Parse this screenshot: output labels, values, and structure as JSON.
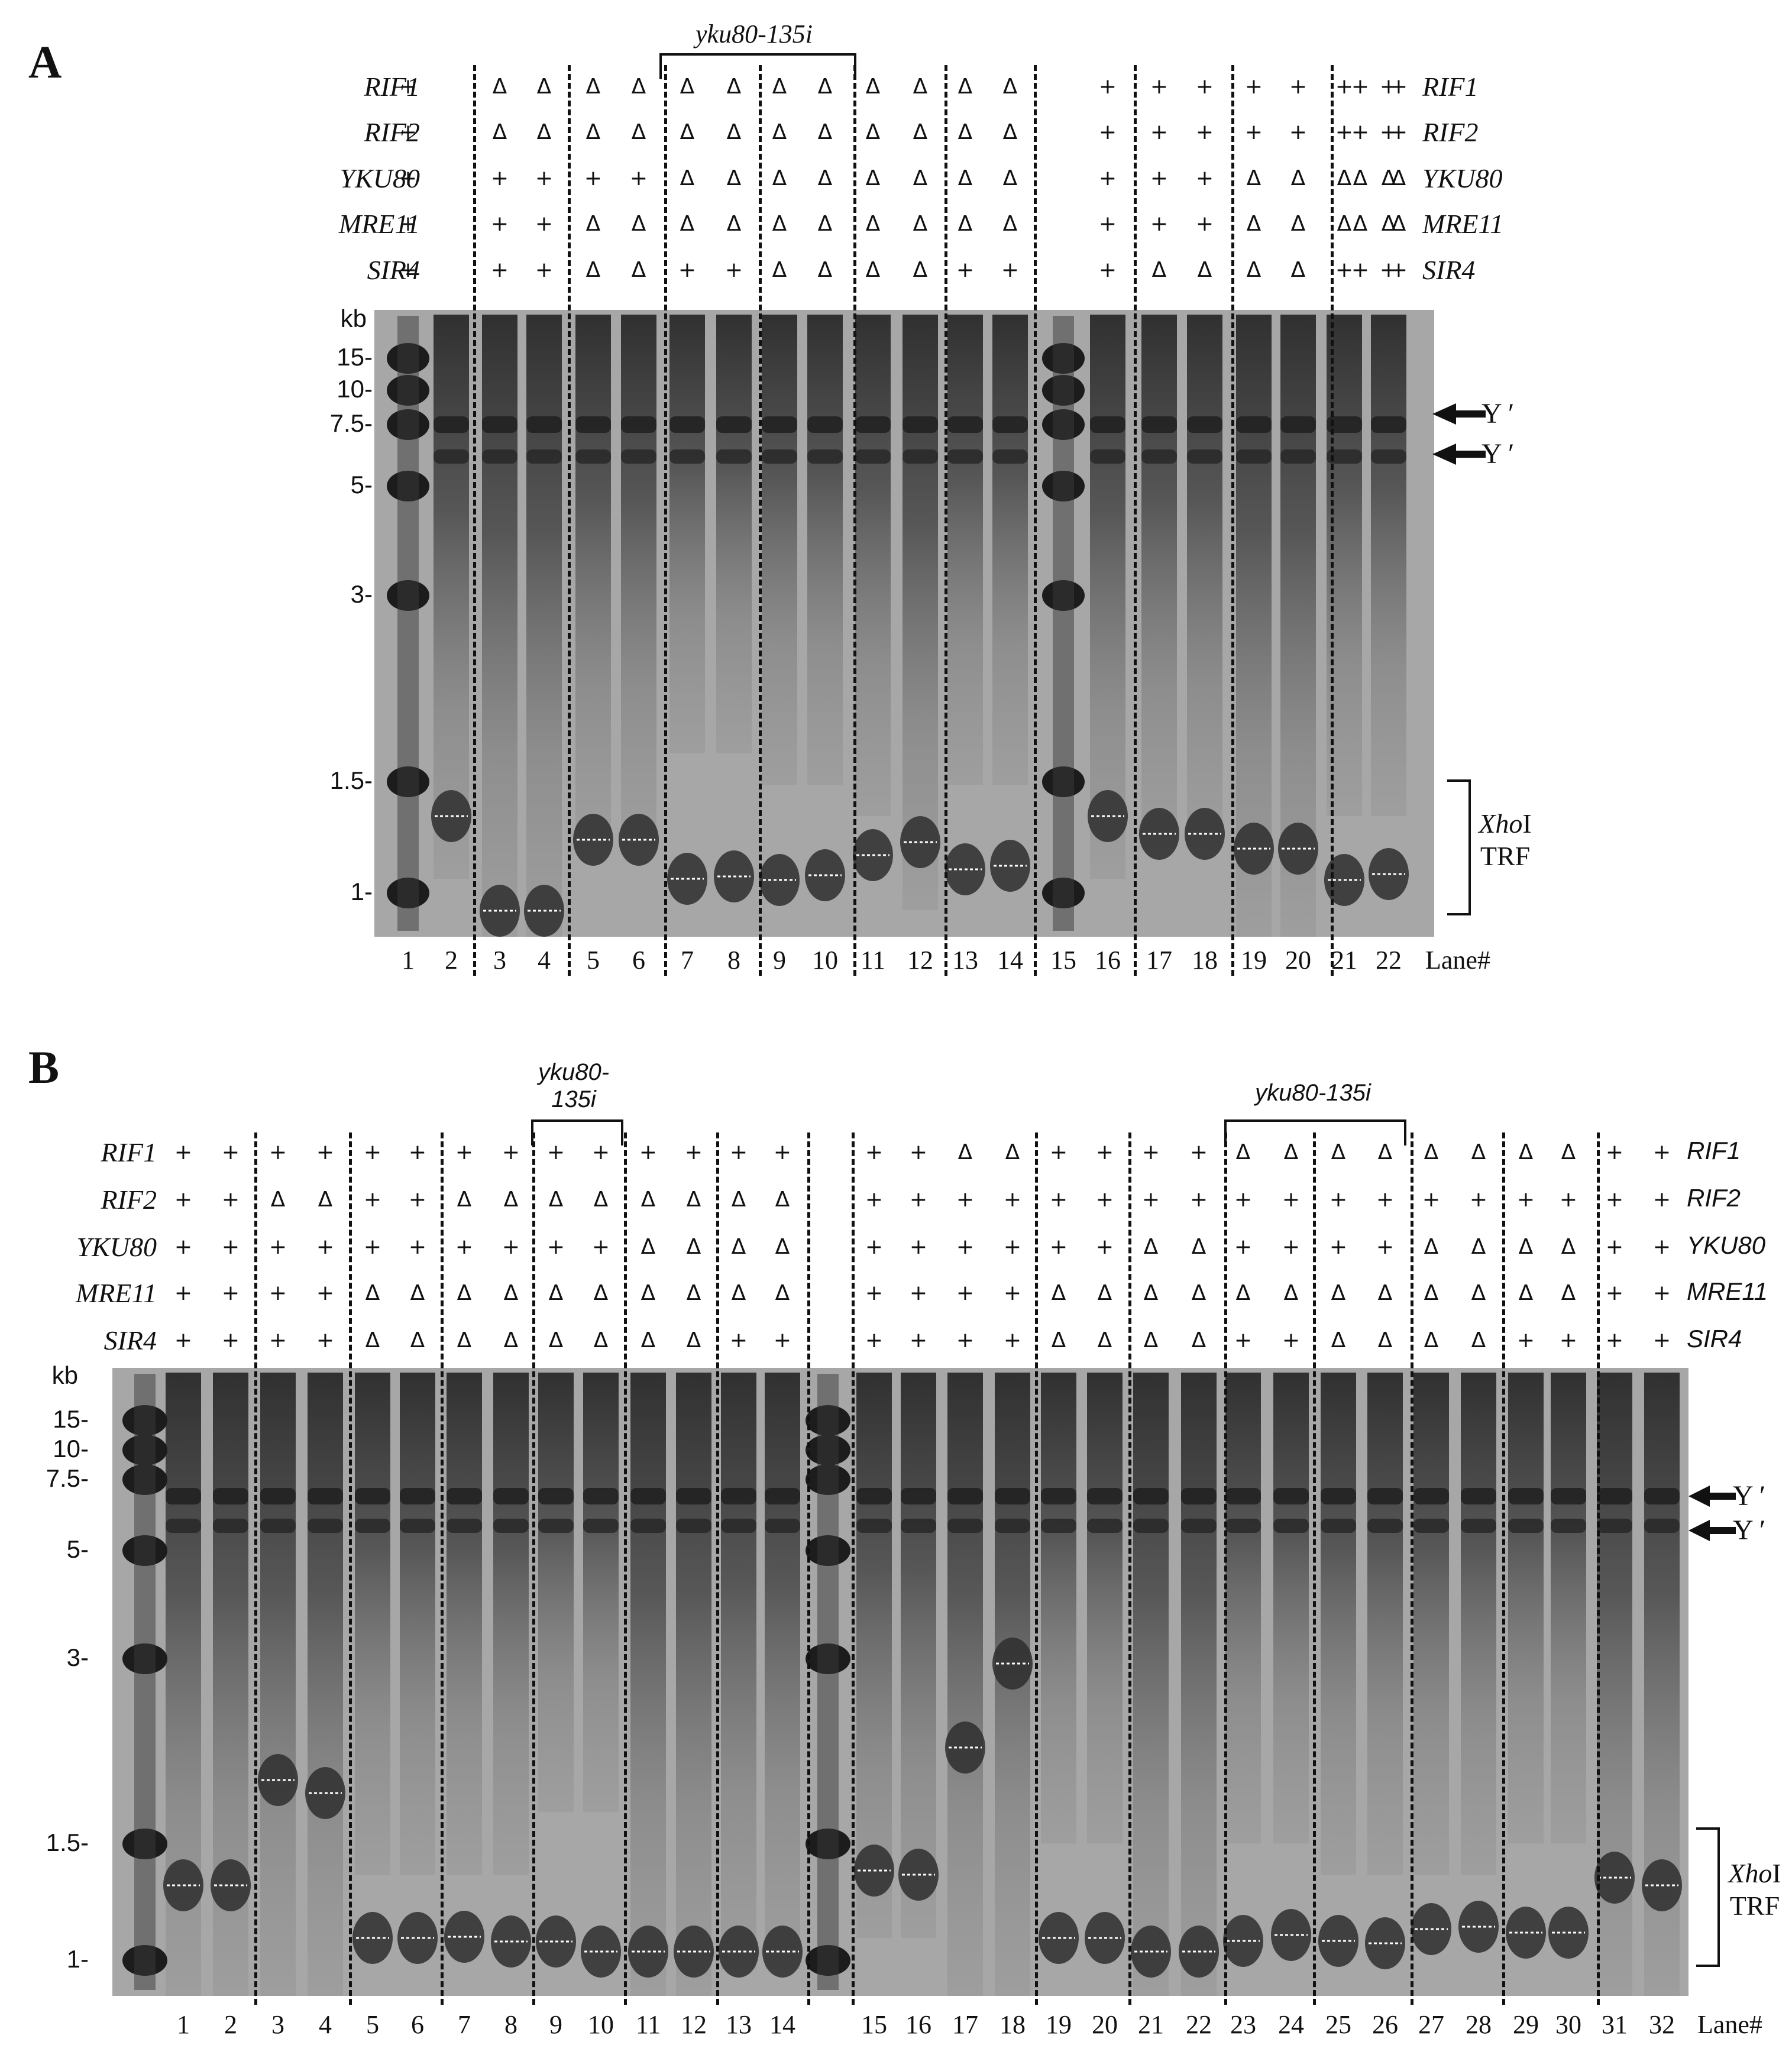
{
  "panelA": {
    "letter": "A",
    "bracket_label": "yku80-135i",
    "genes_left": [
      "RIF1",
      "RIF2",
      "YKU80",
      "MRE11",
      "SIR4"
    ],
    "genes_right": [
      "RIF1",
      "RIF2",
      "YKU80",
      "MRE11",
      "SIR4"
    ],
    "genotypes": [
      {
        "lane": "1",
        "RIF1": "+",
        "RIF2": "+",
        "YKU80": "+",
        "MRE11": "+",
        "SIR4": "+"
      },
      {
        "lane": "3",
        "RIF1": "Δ",
        "RIF2": "Δ",
        "YKU80": "+",
        "MRE11": "+",
        "SIR4": "+"
      },
      {
        "lane": "4",
        "RIF1": "Δ",
        "RIF2": "Δ",
        "YKU80": "+",
        "MRE11": "+",
        "SIR4": "+"
      },
      {
        "lane": "5",
        "RIF1": "Δ",
        "RIF2": "Δ",
        "YKU80": "+",
        "MRE11": "Δ",
        "SIR4": "Δ"
      },
      {
        "lane": "6",
        "RIF1": "Δ",
        "RIF2": "Δ",
        "YKU80": "+",
        "MRE11": "Δ",
        "SIR4": "Δ"
      },
      {
        "lane": "7",
        "RIF1": "Δ",
        "RIF2": "Δ",
        "YKU80": "Δ",
        "MRE11": "Δ",
        "SIR4": "+"
      },
      {
        "lane": "8",
        "RIF1": "Δ",
        "RIF2": "Δ",
        "YKU80": "Δ",
        "MRE11": "Δ",
        "SIR4": "+"
      },
      {
        "lane": "9",
        "RIF1": "Δ",
        "RIF2": "Δ",
        "YKU80": "Δ",
        "MRE11": "Δ",
        "SIR4": "Δ"
      },
      {
        "lane": "10",
        "RIF1": "Δ",
        "RIF2": "Δ",
        "YKU80": "Δ",
        "MRE11": "Δ",
        "SIR4": "Δ"
      },
      {
        "lane": "11",
        "RIF1": "Δ",
        "RIF2": "Δ",
        "YKU80": "Δ",
        "MRE11": "Δ",
        "SIR4": "Δ"
      },
      {
        "lane": "12",
        "RIF1": "Δ",
        "RIF2": "Δ",
        "YKU80": "Δ",
        "MRE11": "Δ",
        "SIR4": "Δ"
      },
      {
        "lane": "13",
        "RIF1": "Δ",
        "RIF2": "Δ",
        "YKU80": "Δ",
        "MRE11": "Δ",
        "SIR4": "+"
      },
      {
        "lane": "14",
        "RIF1": "Δ",
        "RIF2": "Δ",
        "YKU80": "Δ",
        "MRE11": "Δ",
        "SIR4": "+"
      },
      {
        "lane": "16",
        "RIF1": "+",
        "RIF2": "+",
        "YKU80": "+",
        "MRE11": "+",
        "SIR4": "+"
      },
      {
        "lane": "17",
        "RIF1": "+",
        "RIF2": "+",
        "YKU80": "+",
        "MRE11": "+",
        "SIR4": "Δ"
      },
      {
        "lane": "18",
        "RIF1": "+",
        "RIF2": "+",
        "YKU80": "+",
        "MRE11": "+",
        "SIR4": "Δ"
      },
      {
        "lane": "19",
        "RIF1": "+",
        "RIF2": "+",
        "YKU80": "Δ",
        "MRE11": "Δ",
        "SIR4": "Δ"
      },
      {
        "lane": "20",
        "RIF1": "+",
        "RIF2": "+",
        "YKU80": "Δ",
        "MRE11": "Δ",
        "SIR4": "Δ"
      },
      {
        "lane": "21",
        "RIF1": "+",
        "RIF2": "+",
        "YKU80": "Δ",
        "MRE11": "Δ",
        "SIR4": "+"
      },
      {
        "lane": "22",
        "RIF1": "+",
        "RIF2": "+",
        "YKU80": "Δ",
        "MRE11": "Δ",
        "SIR4": "+"
      }
    ],
    "kb_label": "kb",
    "markers": [
      "15-",
      "10-",
      "7.5-",
      "5-",
      "3-",
      "1.5-",
      "1-"
    ],
    "lanes": [
      "1",
      "2",
      "3",
      "4",
      "5",
      "6",
      "7",
      "8",
      "9",
      "10",
      "11",
      "12",
      "13",
      "14",
      "15",
      "16",
      "17",
      "18",
      "19",
      "20",
      "21",
      "22"
    ],
    "lane_tag": "Lane#",
    "y_prime": "Y ′",
    "xhoi": "Xho",
    "xhoi_suffix": "I",
    "trf": "TRF"
  },
  "panelB": {
    "letter": "B",
    "bracket_label_1": "yku80-",
    "bracket_label_1b": "135i",
    "bracket_label_2": "yku80-135i",
    "genes_left": [
      "RIF1",
      "RIF2",
      "YKU80",
      "MRE11",
      "SIR4"
    ],
    "genes_right": [
      "RIF1",
      "RIF2",
      "YKU80",
      "MRE11",
      "SIR4"
    ],
    "genotypes": [
      {
        "lane": "1",
        "RIF1": "+",
        "RIF2": "+",
        "YKU80": "+",
        "MRE11": "+",
        "SIR4": "+"
      },
      {
        "lane": "2",
        "RIF1": "+",
        "RIF2": "+",
        "YKU80": "+",
        "MRE11": "+",
        "SIR4": "+"
      },
      {
        "lane": "3",
        "RIF1": "+",
        "RIF2": "Δ",
        "YKU80": "+",
        "MRE11": "+",
        "SIR4": "+"
      },
      {
        "lane": "4",
        "RIF1": "+",
        "RIF2": "Δ",
        "YKU80": "+",
        "MRE11": "+",
        "SIR4": "+"
      },
      {
        "lane": "5",
        "RIF1": "+",
        "RIF2": "+",
        "YKU80": "+",
        "MRE11": "Δ",
        "SIR4": "Δ"
      },
      {
        "lane": "6",
        "RIF1": "+",
        "RIF2": "+",
        "YKU80": "+",
        "MRE11": "Δ",
        "SIR4": "Δ"
      },
      {
        "lane": "7",
        "RIF1": "+",
        "RIF2": "Δ",
        "YKU80": "+",
        "MRE11": "Δ",
        "SIR4": "Δ"
      },
      {
        "lane": "8",
        "RIF1": "+",
        "RIF2": "Δ",
        "YKU80": "+",
        "MRE11": "Δ",
        "SIR4": "Δ"
      },
      {
        "lane": "9",
        "RIF1": "+",
        "RIF2": "Δ",
        "YKU80": "+",
        "MRE11": "Δ",
        "SIR4": "Δ"
      },
      {
        "lane": "10",
        "RIF1": "+",
        "RIF2": "Δ",
        "YKU80": "+",
        "MRE11": "Δ",
        "SIR4": "Δ"
      },
      {
        "lane": "11",
        "RIF1": "+",
        "RIF2": "Δ",
        "YKU80": "Δ",
        "MRE11": "Δ",
        "SIR4": "Δ"
      },
      {
        "lane": "12",
        "RIF1": "+",
        "RIF2": "Δ",
        "YKU80": "Δ",
        "MRE11": "Δ",
        "SIR4": "Δ"
      },
      {
        "lane": "13",
        "RIF1": "+",
        "RIF2": "Δ",
        "YKU80": "Δ",
        "MRE11": "Δ",
        "SIR4": "+"
      },
      {
        "lane": "14",
        "RIF1": "+",
        "RIF2": "Δ",
        "YKU80": "Δ",
        "MRE11": "Δ",
        "SIR4": "+"
      },
      {
        "lane": "15",
        "RIF1": "+",
        "RIF2": "+",
        "YKU80": "+",
        "MRE11": "+",
        "SIR4": "+"
      },
      {
        "lane": "16",
        "RIF1": "+",
        "RIF2": "+",
        "YKU80": "+",
        "MRE11": "+",
        "SIR4": "+"
      },
      {
        "lane": "17",
        "RIF1": "Δ",
        "RIF2": "+",
        "YKU80": "+",
        "MRE11": "+",
        "SIR4": "+"
      },
      {
        "lane": "18",
        "RIF1": "Δ",
        "RIF2": "+",
        "YKU80": "+",
        "MRE11": "+",
        "SIR4": "+"
      },
      {
        "lane": "19",
        "RIF1": "+",
        "RIF2": "+",
        "YKU80": "+",
        "MRE11": "Δ",
        "SIR4": "Δ"
      },
      {
        "lane": "20",
        "RIF1": "+",
        "RIF2": "+",
        "YKU80": "+",
        "MRE11": "Δ",
        "SIR4": "Δ"
      },
      {
        "lane": "21",
        "RIF1": "+",
        "RIF2": "+",
        "YKU80": "Δ",
        "MRE11": "Δ",
        "SIR4": "Δ"
      },
      {
        "lane": "22",
        "RIF1": "+",
        "RIF2": "+",
        "YKU80": "Δ",
        "MRE11": "Δ",
        "SIR4": "Δ"
      },
      {
        "lane": "23",
        "RIF1": "Δ",
        "RIF2": "+",
        "YKU80": "+",
        "MRE11": "Δ",
        "SIR4": "+"
      },
      {
        "lane": "24",
        "RIF1": "Δ",
        "RIF2": "+",
        "YKU80": "+",
        "MRE11": "Δ",
        "SIR4": "+"
      },
      {
        "lane": "25",
        "RIF1": "Δ",
        "RIF2": "+",
        "YKU80": "+",
        "MRE11": "Δ",
        "SIR4": "Δ"
      },
      {
        "lane": "26",
        "RIF1": "Δ",
        "RIF2": "+",
        "YKU80": "+",
        "MRE11": "Δ",
        "SIR4": "Δ"
      },
      {
        "lane": "27",
        "RIF1": "Δ",
        "RIF2": "+",
        "YKU80": "Δ",
        "MRE11": "Δ",
        "SIR4": "Δ"
      },
      {
        "lane": "28",
        "RIF1": "Δ",
        "RIF2": "+",
        "YKU80": "Δ",
        "MRE11": "Δ",
        "SIR4": "Δ"
      },
      {
        "lane": "29",
        "RIF1": "Δ",
        "RIF2": "+",
        "YKU80": "Δ",
        "MRE11": "Δ",
        "SIR4": "+"
      },
      {
        "lane": "30",
        "RIF1": "Δ",
        "RIF2": "+",
        "YKU80": "Δ",
        "MRE11": "Δ",
        "SIR4": "+"
      },
      {
        "lane": "31",
        "RIF1": "+",
        "RIF2": "+",
        "YKU80": "+",
        "MRE11": "+",
        "SIR4": "+"
      },
      {
        "lane": "32",
        "RIF1": "+",
        "RIF2": "+",
        "YKU80": "+",
        "MRE11": "+",
        "SIR4": "+"
      }
    ],
    "kb_label": "kb",
    "markers": [
      "15-",
      "10-",
      "7.5-",
      "5-",
      "3-",
      "1.5-",
      "1-"
    ],
    "lanes": [
      "1",
      "2",
      "3",
      "4",
      "5",
      "6",
      "7",
      "8",
      "9",
      "10",
      "11",
      "12",
      "13",
      "14",
      "15",
      "16",
      "17",
      "18",
      "19",
      "20",
      "21",
      "22",
      "23",
      "24",
      "25",
      "26",
      "27",
      "28",
      "29",
      "30",
      "31",
      "32"
    ],
    "lane_tag": "Lane#",
    "y_prime": "Y ′",
    "xhoi": "Xho",
    "xhoi_suffix": "I",
    "trf": "TRF"
  }
}
